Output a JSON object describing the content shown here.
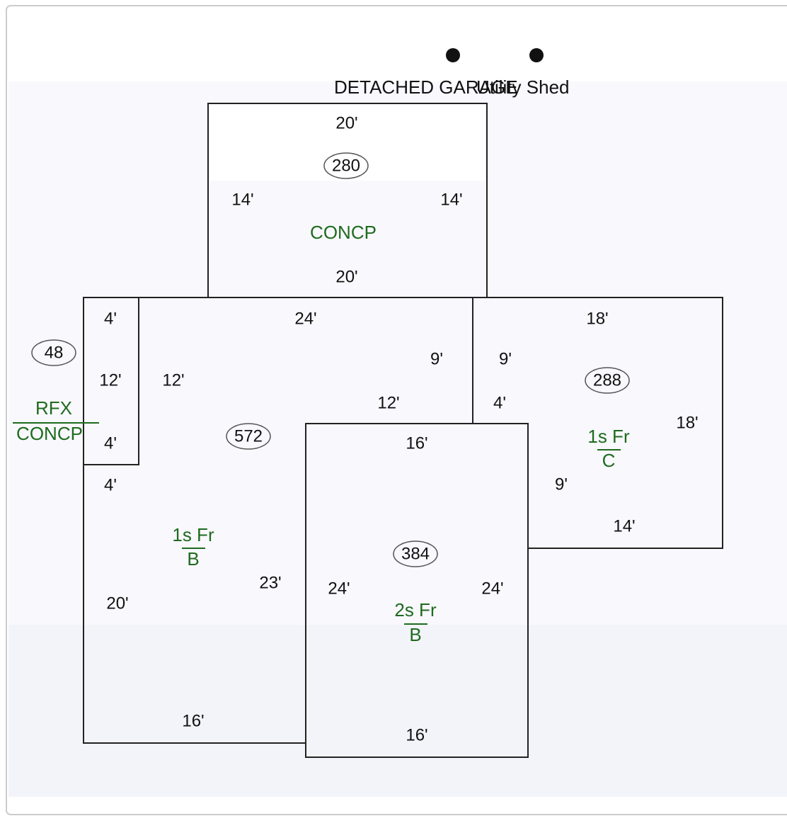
{
  "outbuildings": [
    {
      "label": "DETACHED GARAGE"
    },
    {
      "label": "Utility Shed"
    }
  ],
  "areas": [
    {
      "area": "280",
      "label": "CONCP",
      "dimensions": [
        "20'",
        "14'",
        "14'",
        "20'"
      ]
    },
    {
      "area": "48",
      "label": "RFX",
      "sublabel": "CONCP",
      "dimensions": [
        "4'",
        "12'",
        "4'"
      ]
    },
    {
      "area": "572",
      "label": "1s Fr",
      "sublabel": "B",
      "dimensions": [
        "24'",
        "9'",
        "12'",
        "12'",
        "4'",
        "20'",
        "23'",
        "16'"
      ]
    },
    {
      "area": "288",
      "label": "1s Fr",
      "sublabel": "C",
      "dimensions": [
        "18'",
        "9'",
        "4'",
        "18'",
        "9'",
        "14'"
      ]
    },
    {
      "area": "384",
      "label": "2s Fr",
      "sublabel": "B",
      "dimensions": [
        "16'",
        "24'",
        "24'",
        "16'"
      ]
    }
  ]
}
